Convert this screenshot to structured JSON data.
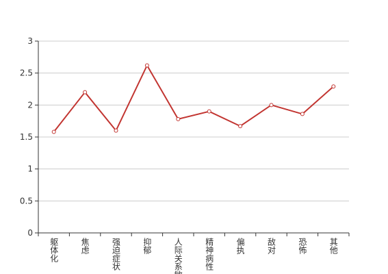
{
  "chart_data": {
    "type": "line",
    "categories": [
      "躯体化",
      "焦虑",
      "强迫症状",
      "抑郁",
      "人际关系敏感",
      "精神病性",
      "偏执",
      "敌对",
      "恐怖",
      "其他"
    ],
    "series": [
      {
        "color": "#c23531",
        "values": [
          1.58,
          2.2,
          1.6,
          2.62,
          1.78,
          1.9,
          1.67,
          2.0,
          1.86,
          2.29
        ]
      }
    ],
    "ylim": [
      0,
      3
    ],
    "yticks": [
      0,
      {
        "value": 0.5,
        "label": "0.5"
      },
      1,
      {
        "value": 1.5,
        "label": "1.5"
      },
      2,
      {
        "value": 2.5,
        "label": "2.5"
      },
      3
    ],
    "grid": true
  }
}
